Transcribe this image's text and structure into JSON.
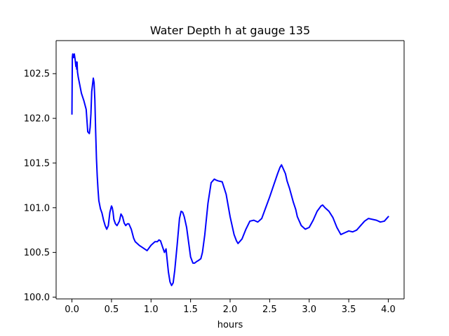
{
  "chart_data": {
    "type": "line",
    "title": "Water Depth h at gauge 135",
    "xlabel": "hours",
    "ylabel": "",
    "xlim": [
      -0.2,
      4.2
    ],
    "ylim": [
      99.98,
      102.87
    ],
    "xticks": [
      0.0,
      0.5,
      1.0,
      1.5,
      2.0,
      2.5,
      3.0,
      3.5,
      4.0
    ],
    "xtick_labels": [
      "0.0",
      "0.5",
      "1.0",
      "1.5",
      "2.0",
      "2.5",
      "3.0",
      "3.5",
      "4.0"
    ],
    "yticks": [
      100.0,
      100.5,
      101.0,
      101.5,
      102.0,
      102.5
    ],
    "ytick_labels": [
      "100.0",
      "100.5",
      "101.0",
      "101.5",
      "102.0",
      "102.5"
    ],
    "grid": false,
    "legend": "none",
    "series": [
      {
        "color": "#0000ff",
        "x": [
          0.0,
          0.005,
          0.01,
          0.02,
          0.03,
          0.04,
          0.05,
          0.055,
          0.06,
          0.065,
          0.07,
          0.08,
          0.1,
          0.12,
          0.15,
          0.18,
          0.2,
          0.22,
          0.23,
          0.24,
          0.25,
          0.27,
          0.28,
          0.29,
          0.3,
          0.31,
          0.32,
          0.33,
          0.34,
          0.36,
          0.38,
          0.4,
          0.42,
          0.44,
          0.46,
          0.48,
          0.5,
          0.51,
          0.52,
          0.53,
          0.55,
          0.57,
          0.6,
          0.62,
          0.64,
          0.66,
          0.68,
          0.7,
          0.72,
          0.75,
          0.78,
          0.8,
          0.85,
          0.9,
          0.95,
          1.0,
          1.05,
          1.08,
          1.1,
          1.12,
          1.15,
          1.17,
          1.19,
          1.2,
          1.22,
          1.24,
          1.26,
          1.28,
          1.3,
          1.33,
          1.36,
          1.38,
          1.4,
          1.42,
          1.45,
          1.5,
          1.53,
          1.55,
          1.58,
          1.6,
          1.63,
          1.65,
          1.68,
          1.72,
          1.76,
          1.8,
          1.82,
          1.85,
          1.9,
          1.95,
          2.0,
          2.05,
          2.08,
          2.1,
          2.15,
          2.2,
          2.25,
          2.3,
          2.35,
          2.4,
          2.45,
          2.5,
          2.55,
          2.6,
          2.63,
          2.65,
          2.67,
          2.7,
          2.72,
          2.75,
          2.8,
          2.83,
          2.85,
          2.9,
          2.95,
          3.0,
          3.05,
          3.1,
          3.15,
          3.17,
          3.2,
          3.25,
          3.3,
          3.35,
          3.4,
          3.45,
          3.5,
          3.55,
          3.6,
          3.65,
          3.7,
          3.75,
          3.8,
          3.85,
          3.9,
          3.95,
          4.0
        ],
        "y": [
          102.05,
          102.68,
          102.72,
          102.68,
          102.72,
          102.66,
          102.58,
          102.63,
          102.55,
          102.63,
          102.52,
          102.46,
          102.37,
          102.28,
          102.2,
          102.1,
          101.85,
          101.83,
          101.9,
          102.05,
          102.3,
          102.45,
          102.4,
          102.2,
          101.85,
          101.55,
          101.35,
          101.2,
          101.08,
          100.99,
          100.94,
          100.86,
          100.8,
          100.76,
          100.8,
          100.95,
          101.02,
          101.0,
          100.95,
          100.87,
          100.82,
          100.8,
          100.85,
          100.93,
          100.9,
          100.83,
          100.8,
          100.82,
          100.82,
          100.76,
          100.66,
          100.62,
          100.58,
          100.55,
          100.52,
          100.58,
          100.62,
          100.62,
          100.64,
          100.63,
          100.55,
          100.5,
          100.54,
          100.45,
          100.28,
          100.17,
          100.13,
          100.16,
          100.3,
          100.58,
          100.88,
          100.96,
          100.95,
          100.9,
          100.78,
          100.45,
          100.38,
          100.38,
          100.4,
          100.41,
          100.43,
          100.5,
          100.7,
          101.05,
          101.28,
          101.32,
          101.31,
          101.3,
          101.29,
          101.15,
          100.9,
          100.7,
          100.63,
          100.6,
          100.65,
          100.76,
          100.85,
          100.86,
          100.84,
          100.88,
          101.0,
          101.12,
          101.25,
          101.38,
          101.45,
          101.48,
          101.44,
          101.38,
          101.3,
          101.22,
          101.06,
          100.98,
          100.9,
          100.8,
          100.76,
          100.78,
          100.86,
          100.96,
          101.02,
          101.03,
          101.0,
          100.96,
          100.89,
          100.78,
          100.7,
          100.72,
          100.74,
          100.73,
          100.75,
          100.8,
          100.85,
          100.88,
          100.87,
          100.86,
          100.84,
          100.85,
          100.9
        ]
      }
    ]
  }
}
